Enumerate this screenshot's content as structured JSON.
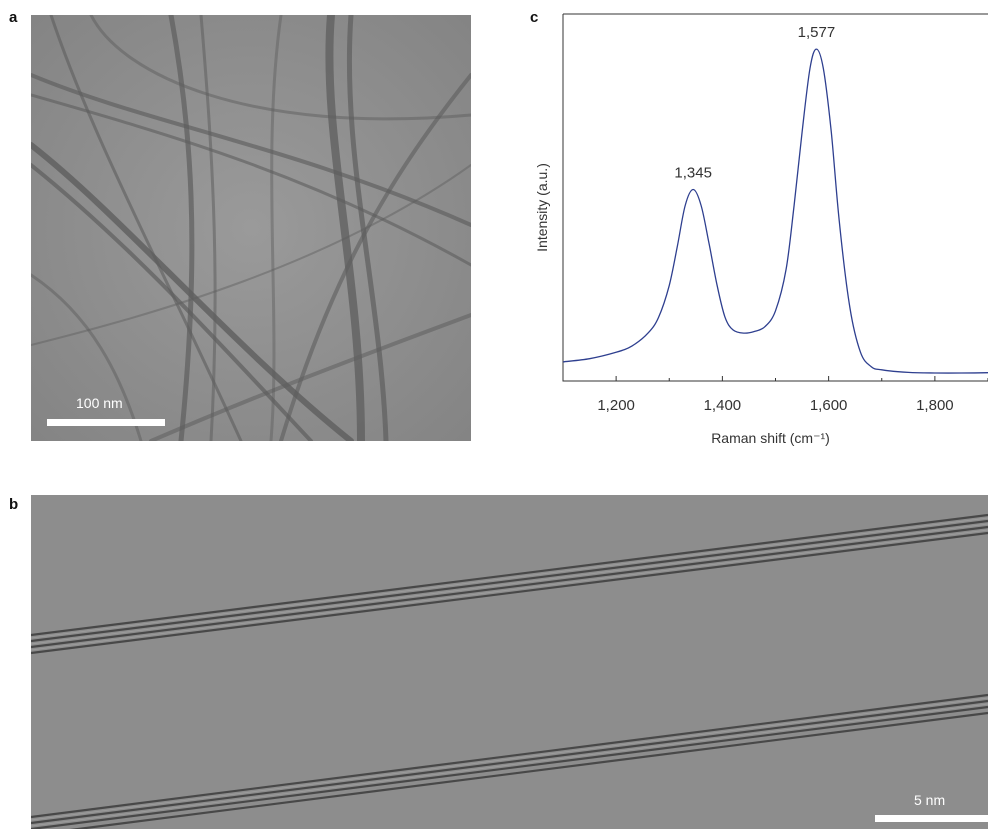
{
  "panel_a": {
    "letter": "a",
    "scale_bar_label": "100 nm"
  },
  "panel_b": {
    "letter": "b",
    "scale_bar_label": "5 nm"
  },
  "panel_c": {
    "letter": "c"
  },
  "chart_data": {
    "type": "line",
    "xlabel": "Raman shift (cm⁻¹)",
    "ylabel": "Intensity (a.u.)",
    "xlim": [
      1100,
      1900
    ],
    "ylim": [
      0,
      1.15
    ],
    "xticks": [
      1200,
      1300,
      1400,
      1500,
      1600,
      1700,
      1800,
      1900
    ],
    "xtick_labels": [
      "1,200",
      "1,400",
      "1,600",
      "1,800"
    ],
    "xtick_label_values": [
      1200,
      1400,
      1600,
      1800
    ],
    "grid": false,
    "color": "#2e3f8f",
    "series": [
      {
        "x": [
          1100,
          1150,
          1200,
          1230,
          1260,
          1280,
          1300,
          1315,
          1330,
          1345,
          1360,
          1375,
          1390,
          1405,
          1420,
          1440,
          1460,
          1480,
          1500,
          1520,
          1535,
          1550,
          1565,
          1577,
          1590,
          1605,
          1620,
          1640,
          1660,
          1680,
          1700,
          1750,
          1800,
          1850,
          1900
        ],
        "y": [
          0.06,
          0.07,
          0.09,
          0.11,
          0.15,
          0.2,
          0.3,
          0.42,
          0.55,
          0.6,
          0.55,
          0.43,
          0.3,
          0.2,
          0.16,
          0.15,
          0.155,
          0.17,
          0.22,
          0.35,
          0.55,
          0.78,
          0.98,
          1.04,
          0.98,
          0.78,
          0.5,
          0.23,
          0.09,
          0.045,
          0.035,
          0.027,
          0.025,
          0.025,
          0.026
        ]
      }
    ],
    "annotations": [
      {
        "text": "1,345",
        "x": 1345,
        "y": 0.6
      },
      {
        "text": "1,577",
        "x": 1577,
        "y": 1.04
      }
    ]
  }
}
